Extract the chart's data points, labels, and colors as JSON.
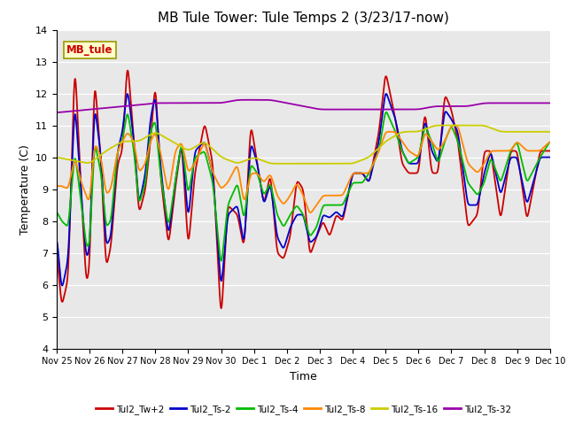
{
  "title": "MB Tule Tower: Tule Temps 2 (3/23/17-now)",
  "xlabel": "Time",
  "ylabel": "Temperature (C)",
  "ylim": [
    4.0,
    14.0
  ],
  "yticks": [
    4.0,
    5.0,
    6.0,
    7.0,
    8.0,
    9.0,
    10.0,
    11.0,
    12.0,
    13.0,
    14.0
  ],
  "bg_color": "#e8e8e8",
  "fig_color": "#ffffff",
  "series_colors": {
    "Tul2_Tw+2": "#cc0000",
    "Tul2_Ts-2": "#0000cc",
    "Tul2_Ts-4": "#00bb00",
    "Tul2_Ts-8": "#ff8800",
    "Tul2_Ts-16": "#cccc00",
    "Tul2_Ts-32": "#9900aa"
  },
  "xtick_labels": [
    "Nov 25",
    "Nov 26",
    "Nov 27",
    "Nov 28",
    "Nov 29",
    "Nov 30",
    "Dec 1",
    "Dec 2",
    "Dec 3",
    "Dec 4",
    "Dec 5",
    "Dec 6",
    "Dec 7",
    "Dec 8",
    "Dec 9",
    "Dec 10"
  ],
  "station_label": "MB_tule",
  "station_label_color": "#cc0000",
  "station_box_facecolor": "#ffffcc",
  "station_box_edgecolor": "#999900",
  "legend_labels": [
    "Tul2_Tw+2",
    "Tul2_Ts-2",
    "Tul2_Ts-4",
    "Tul2_Ts-8",
    "Tul2_Ts-16",
    "Tul2_Ts-32"
  ]
}
